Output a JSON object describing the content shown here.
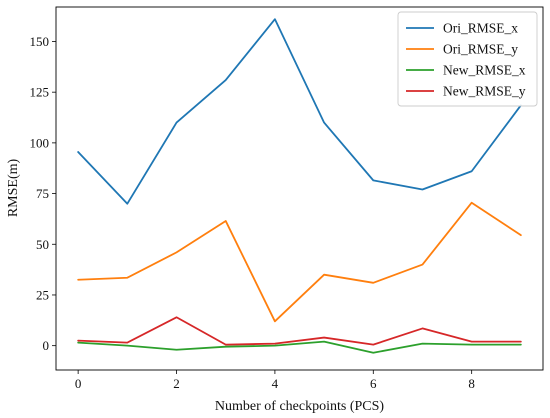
{
  "chart_data": {
    "type": "line",
    "title": "",
    "xlabel": "Number of checkpoints (PCS)",
    "ylabel": "RMSE(m)",
    "x": [
      0,
      1,
      2,
      3,
      4,
      5,
      6,
      7,
      8,
      9
    ],
    "xlim": [
      -0.45,
      9.45
    ],
    "ylim": [
      -12,
      167
    ],
    "xticks": [
      0,
      2,
      4,
      6,
      8
    ],
    "yticks": [
      0,
      25,
      50,
      75,
      100,
      125,
      150
    ],
    "grid": false,
    "legend_position": "top-right",
    "series": [
      {
        "name": "Ori_RMSE_x",
        "color": "#1f77b4",
        "values": [
          95.5,
          70.0,
          110.0,
          131.0,
          161.0,
          110.0,
          81.5,
          77.0,
          86.0,
          118.5
        ]
      },
      {
        "name": "Ori_RMSE_y",
        "color": "#ff7f0e",
        "values": [
          32.5,
          33.5,
          46.0,
          61.5,
          12.0,
          35.0,
          31.0,
          40.0,
          70.5,
          54.5
        ]
      },
      {
        "name": "New_RMSE_x",
        "color": "#2ca02c",
        "values": [
          1.5,
          0.0,
          -2.0,
          -0.5,
          0.0,
          2.0,
          -3.5,
          1.0,
          0.5,
          0.5
        ]
      },
      {
        "name": "New_RMSE_y",
        "color": "#d62728",
        "values": [
          2.5,
          1.5,
          14.0,
          0.5,
          1.0,
          4.0,
          0.5,
          8.5,
          2.0,
          2.0
        ]
      }
    ]
  }
}
